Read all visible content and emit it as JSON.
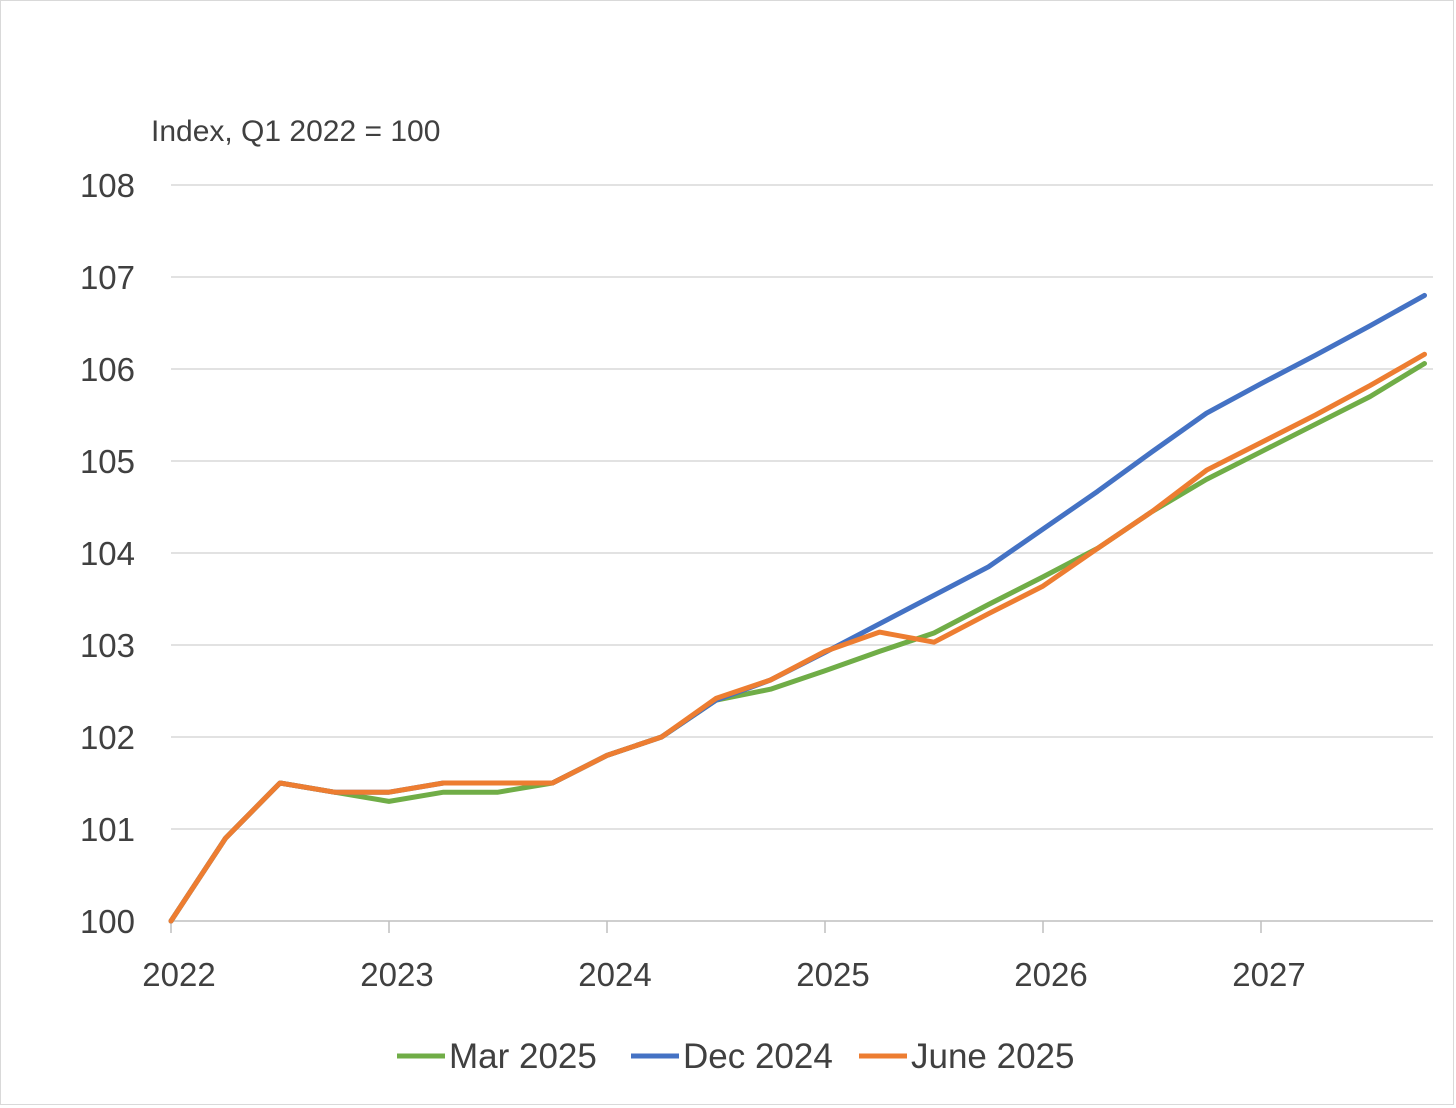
{
  "chart_data": {
    "type": "line",
    "ylabel": "Index, Q1 2022 = 100",
    "ylim": [
      100,
      108
    ],
    "yticks": [
      "100",
      "101",
      "102",
      "103",
      "104",
      "105",
      "106",
      "107",
      "108"
    ],
    "xticks": [
      "2022",
      "2023",
      "2024",
      "2025",
      "2026",
      "2027"
    ],
    "x": [
      "2022 Q1",
      "2022 Q2",
      "2022 Q3",
      "2022 Q4",
      "2023 Q1",
      "2023 Q2",
      "2023 Q3",
      "2023 Q4",
      "2024 Q1",
      "2024 Q2",
      "2024 Q3",
      "2024 Q4",
      "2025 Q1",
      "2025 Q2",
      "2025 Q3",
      "2025 Q4",
      "2026 Q1",
      "2026 Q2",
      "2026 Q3",
      "2026 Q4",
      "2027 Q1",
      "2027 Q2",
      "2027 Q3",
      "2027 Q4"
    ],
    "grid": true,
    "legend_position": "bottom",
    "series": [
      {
        "name": "Mar 2025",
        "color": "#70ad47",
        "values": [
          100.0,
          100.9,
          101.5,
          101.4,
          101.3,
          101.4,
          101.4,
          101.5,
          101.8,
          102.0,
          102.4,
          102.52,
          102.72,
          102.93,
          103.13,
          103.44,
          103.74,
          104.05,
          104.45,
          104.8,
          105.1,
          105.4,
          105.7,
          106.06
        ]
      },
      {
        "name": "Dec 2024",
        "color": "#4472c4",
        "values": [
          100.0,
          100.9,
          101.5,
          101.4,
          101.4,
          101.5,
          101.5,
          101.5,
          101.8,
          102.0,
          102.4,
          102.62,
          102.92,
          103.23,
          103.54,
          103.85,
          104.26,
          104.67,
          105.1,
          105.52,
          105.84,
          106.15,
          106.47,
          106.8
        ]
      },
      {
        "name": "June 2025",
        "color": "#ed7d31",
        "values": [
          100.0,
          100.9,
          101.5,
          101.4,
          101.4,
          101.5,
          101.5,
          101.5,
          101.8,
          102.0,
          102.42,
          102.62,
          102.93,
          103.14,
          103.03,
          103.34,
          103.64,
          104.05,
          104.45,
          104.9,
          105.2,
          105.5,
          105.82,
          106.16
        ]
      }
    ]
  }
}
